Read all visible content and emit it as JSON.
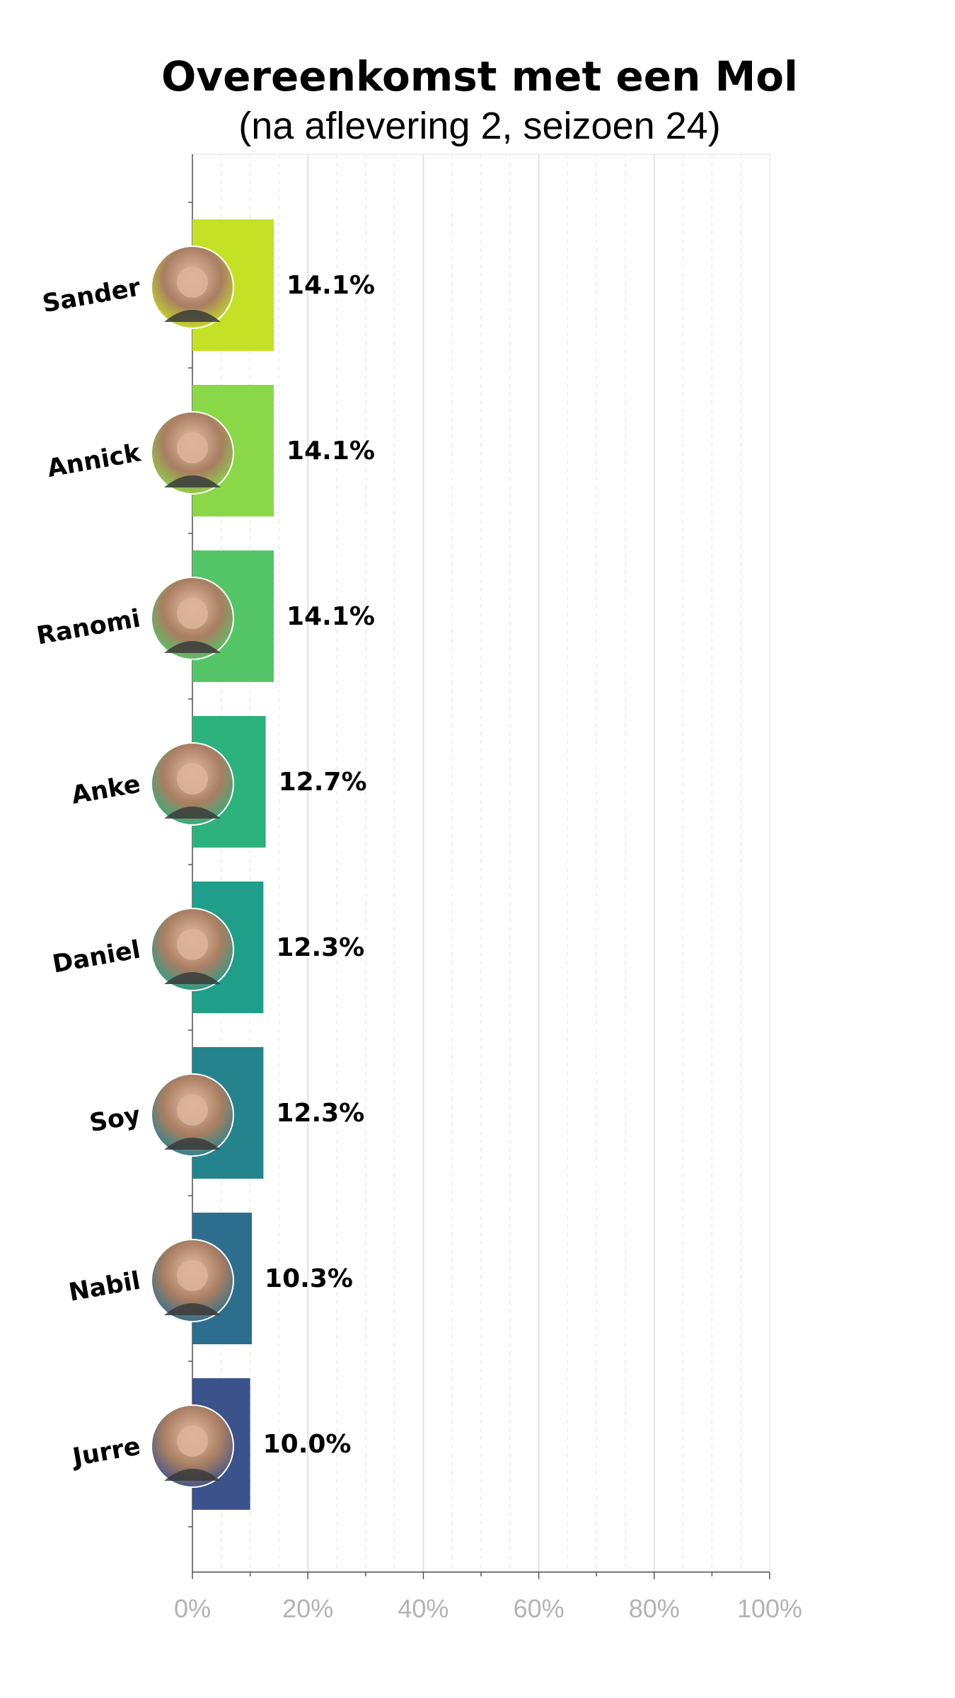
{
  "chart_data": {
    "type": "bar",
    "orientation": "horizontal",
    "title": "Overeenkomst met een Mol",
    "subtitle": "(na aflevering 2, seizoen 24)",
    "categories": [
      "Sander",
      "Annick",
      "Ranomi",
      "Anke",
      "Daniel",
      "Soy",
      "Nabil",
      "Jurre"
    ],
    "values": [
      14.1,
      14.1,
      14.1,
      12.7,
      12.3,
      12.3,
      10.3,
      10.0
    ],
    "value_labels": [
      "14.1%",
      "14.1%",
      "14.1%",
      "12.7%",
      "12.3%",
      "12.3%",
      "10.3%",
      "10.0%"
    ],
    "colors": [
      "#c5e125",
      "#8ad748",
      "#55c667",
      "#2db27d",
      "#1f9e89",
      "#25838e",
      "#2d6e8e",
      "#3b528b"
    ],
    "xlim": [
      0,
      100
    ],
    "xticks": [
      0,
      20,
      40,
      60,
      80,
      100
    ],
    "xtick_labels": [
      "0%",
      "20%",
      "40%",
      "60%",
      "80%",
      "100%"
    ],
    "xlabel": "",
    "ylabel": "",
    "grid": true,
    "legend": "none",
    "avatars": true
  }
}
